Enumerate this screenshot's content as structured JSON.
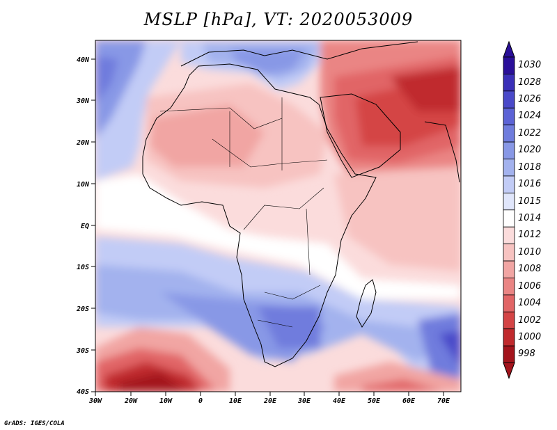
{
  "title": "MSLP [hPa], VT: 2020053009",
  "credit": "GrADS: IGES/COLA",
  "lat_labels": [
    "40N",
    "30N",
    "20N",
    "10N",
    "EQ",
    "10S",
    "20S",
    "30S",
    "40S"
  ],
  "lon_labels": [
    "30W",
    "20W",
    "10W",
    "0",
    "10E",
    "20E",
    "30E",
    "40E",
    "50E",
    "60E",
    "70E"
  ],
  "colorbar": {
    "levels": [
      "1030",
      "1028",
      "1026",
      "1024",
      "1022",
      "1020",
      "1018",
      "1016",
      "1015",
      "1014",
      "1012",
      "1010",
      "1008",
      "1006",
      "1004",
      "1002",
      "1000",
      "998"
    ],
    "colors": [
      "#2a0f99",
      "#3a2fb8",
      "#4a49c9",
      "#5c63d6",
      "#6f7cdd",
      "#8898e6",
      "#a3b2ee",
      "#c2ccf6",
      "#e0e6fb",
      "#ffffff",
      "#fbdcdc",
      "#f7c3c1",
      "#f1a5a3",
      "#ea8584",
      "#e16566",
      "#d44445",
      "#c02a2d",
      "#a3141c"
    ]
  }
}
